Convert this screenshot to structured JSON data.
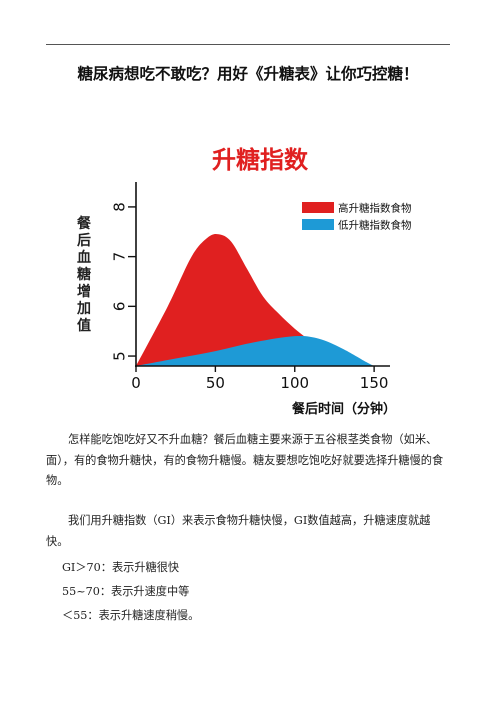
{
  "doc": {
    "title": "糖尿病想吃不敢吃？用好《升糖表》让你巧控糖！",
    "para1": "怎样能吃饱吃好又不升血糖？餐后血糖主要来源于五谷根茎类食物（如米、面），有的食物升糖快，有的食物升糖慢。糖友要想吃饱吃好就要选择升糖慢的食物。",
    "para2": "我们用升糖指数（GI）来表示食物升糖快慢，GI数值越高，升糖速度就越快。",
    "line3": "GI＞70：表示升糖很快",
    "line4": "55~70：表示升速度中等",
    "line5": "＜55：表示升糖速度稍慢。"
  },
  "chart_data": {
    "type": "area",
    "title": "升糖指数",
    "xlabel": "餐后时间（分钟）",
    "ylabel": "餐后血糖增加值",
    "x_ticks": [
      "0",
      "50",
      "100",
      "150"
    ],
    "y_ticks": [
      "5",
      "6",
      "7",
      "8"
    ],
    "xlim": [
      0,
      160
    ],
    "ylim": [
      4.8,
      8.3
    ],
    "series": [
      {
        "name": "高升糖指数食物",
        "color": "#e02020",
        "x": [
          0,
          20,
          35,
          45,
          52,
          60,
          70,
          80,
          90,
          100,
          110,
          120,
          125
        ],
        "y": [
          4.8,
          6.0,
          7.0,
          7.38,
          7.45,
          7.3,
          6.75,
          6.2,
          5.85,
          5.55,
          5.3,
          5.05,
          4.8
        ]
      },
      {
        "name": "低升糖指数食物",
        "color": "#1e9ad6",
        "x": [
          0,
          25,
          50,
          75,
          100,
          115,
          130,
          145,
          150
        ],
        "y": [
          4.8,
          4.95,
          5.1,
          5.28,
          5.4,
          5.35,
          5.15,
          4.88,
          4.8
        ]
      }
    ]
  }
}
